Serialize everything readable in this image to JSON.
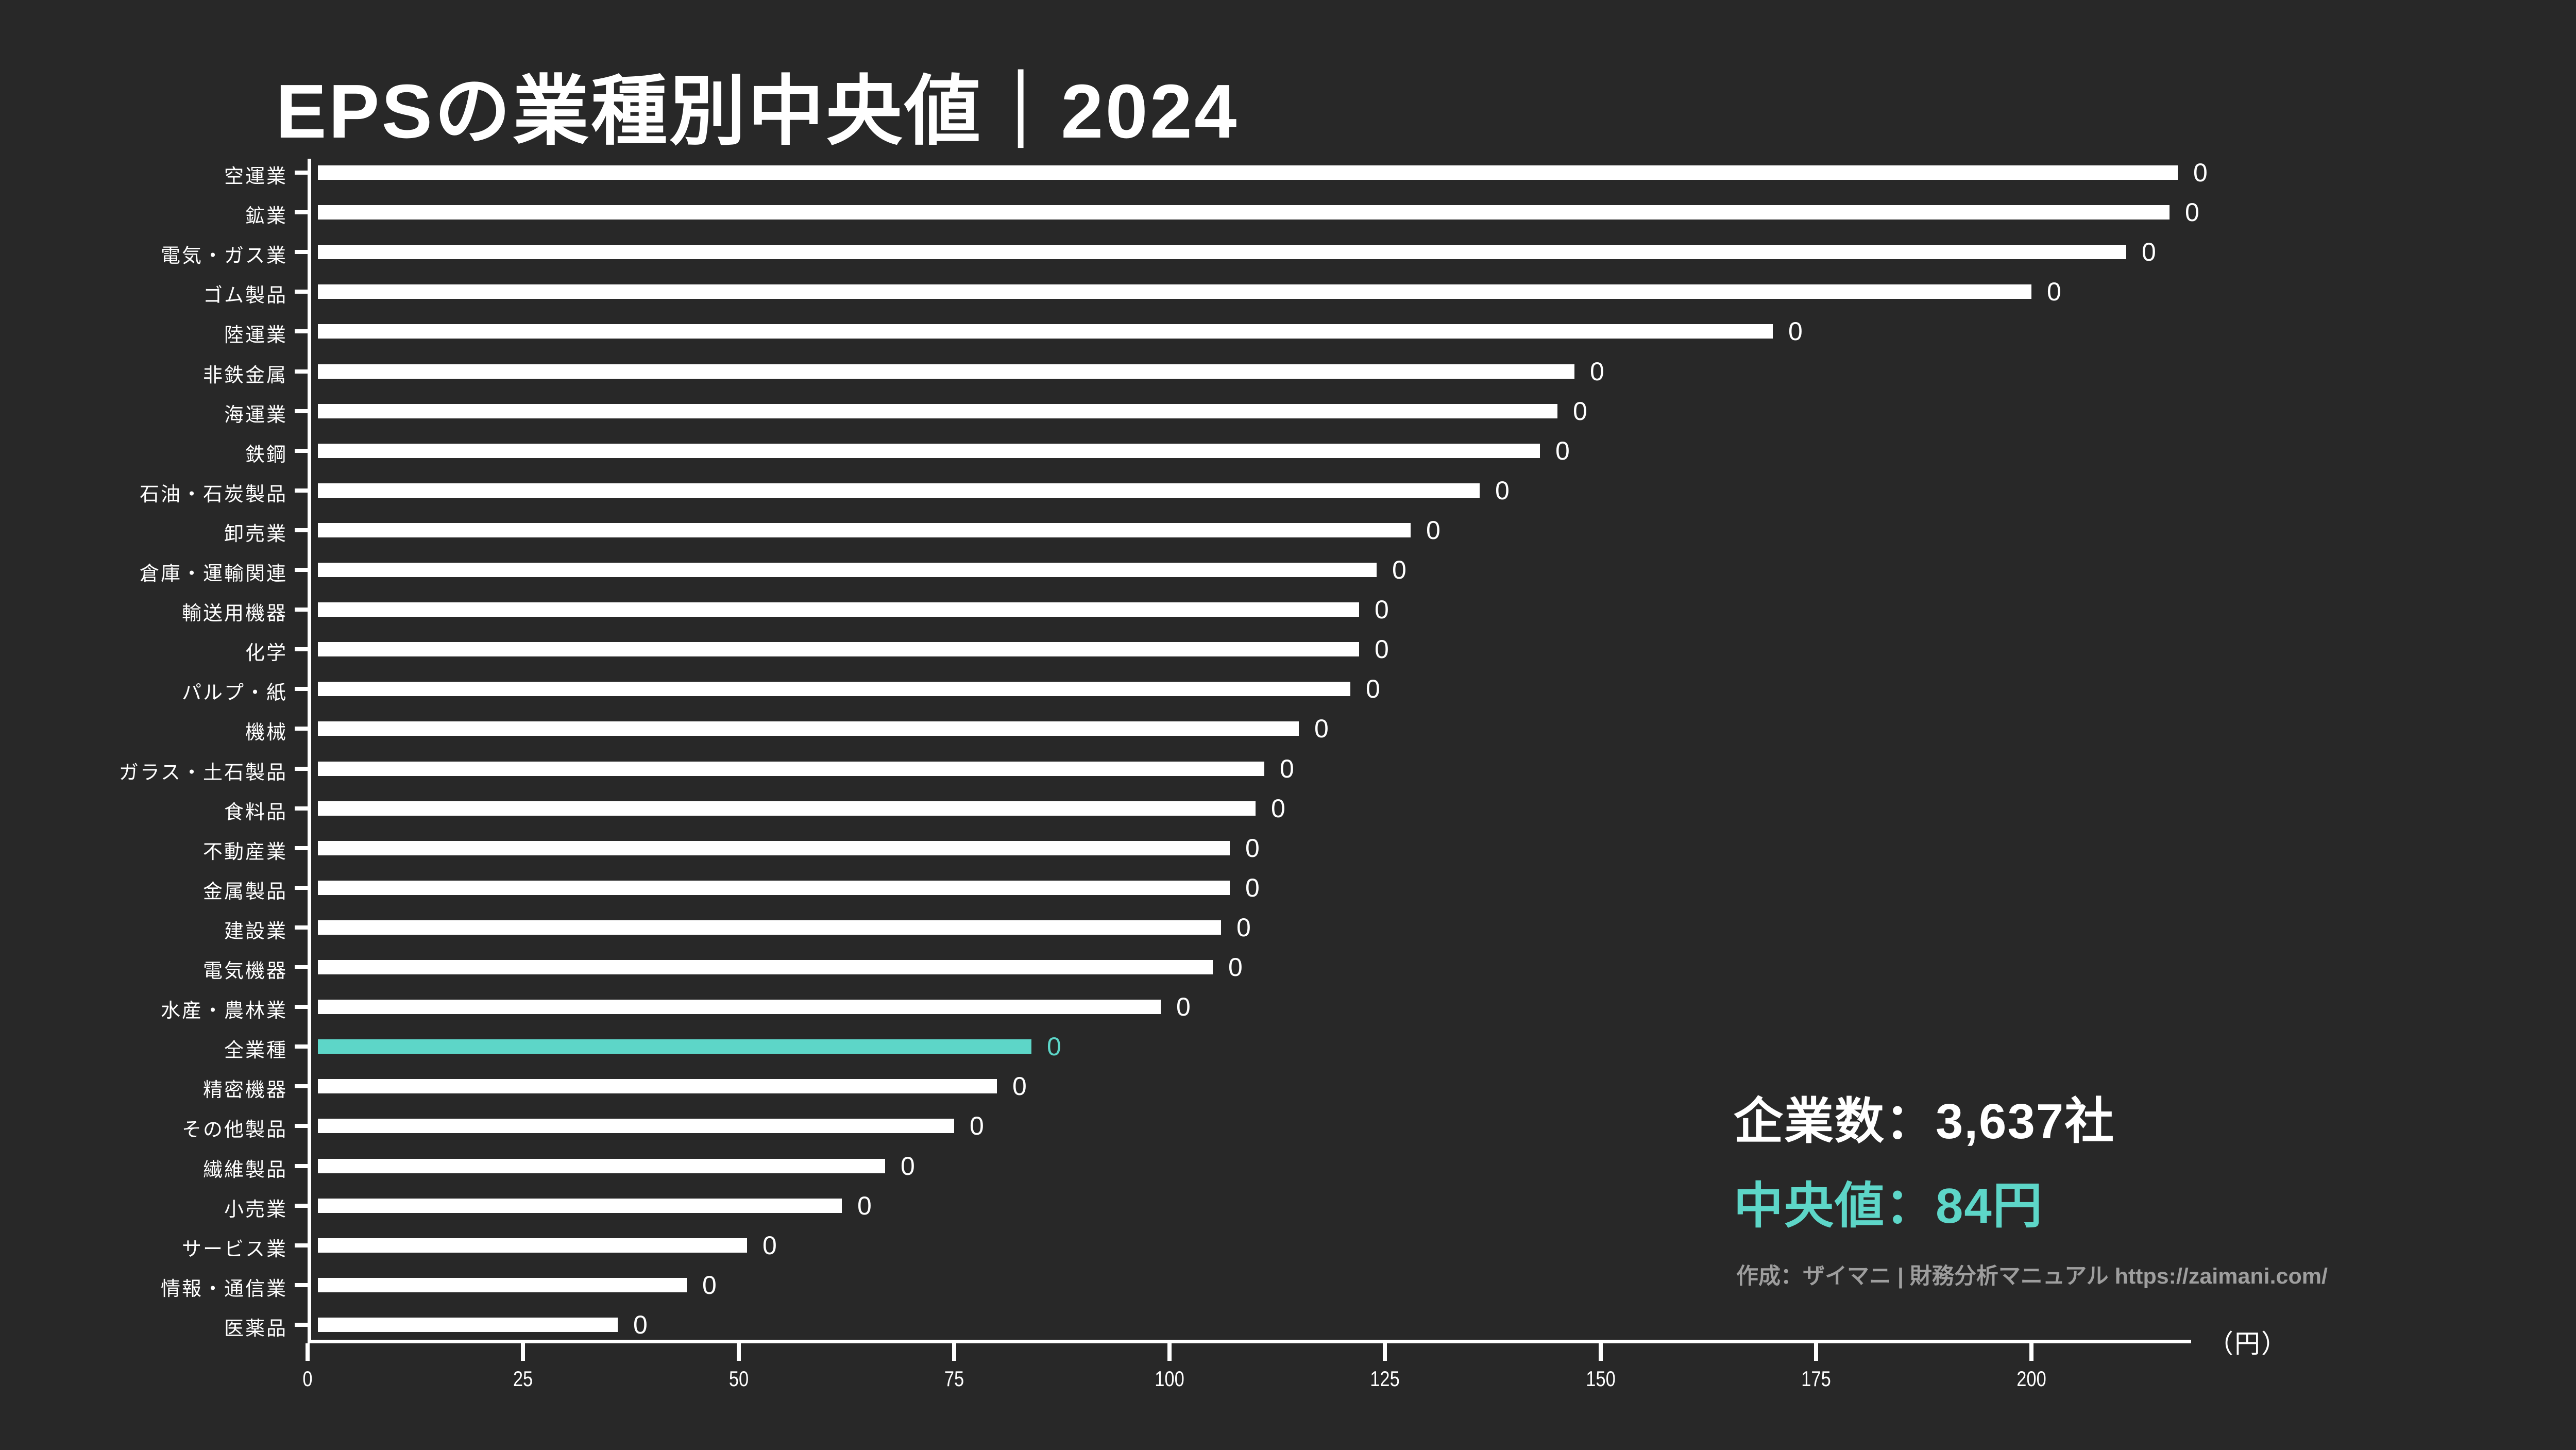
{
  "title": "EPSの業種別中央値｜2024",
  "axis": {
    "unit_label": "（円）",
    "tick_labels": [
      "0",
      "25",
      "50",
      "75",
      "100",
      "125",
      "150",
      "175",
      "200"
    ]
  },
  "summary": {
    "companies_label": "企業数：3,637社",
    "median_label": "中央値：84円",
    "credit": "作成：ザイマニ | 財務分析マニュアル https://zaimani.com/"
  },
  "colors": {
    "background": "#282828",
    "bar": "#ffffff",
    "highlight": "#5dd6c8",
    "text": "#ffffff",
    "credit_text": "#9e9e9e"
  },
  "chart_data": {
    "type": "bar",
    "orientation": "horizontal",
    "title": "EPSの業種別中央値｜2024",
    "xlabel": "（円）",
    "xlim": [
      0,
      218
    ],
    "xticks": [
      0,
      25,
      50,
      75,
      100,
      125,
      150,
      175,
      200
    ],
    "grid": false,
    "legend": false,
    "highlight_category": "全業種",
    "displayed_bar_value_label": "0",
    "categories": [
      "空運業",
      "鉱業",
      "電気・ガス業",
      "ゴム製品",
      "陸運業",
      "非鉄金属",
      "海運業",
      "鉄鋼",
      "石油・石炭製品",
      "卸売業",
      "倉庫・運輸関連",
      "輸送用機器",
      "化学",
      "パルプ・紙",
      "機械",
      "ガラス・土石製品",
      "食料品",
      "不動産業",
      "金属製品",
      "建設業",
      "電気機器",
      "水産・農林業",
      "全業種",
      "精密機器",
      "その他製品",
      "繊維製品",
      "小売業",
      "サービス業",
      "情報・通信業",
      "医薬品"
    ],
    "values": [
      217,
      216,
      211,
      200,
      170,
      147,
      145,
      143,
      136,
      128,
      124,
      122,
      122,
      121,
      115,
      111,
      110,
      107,
      107,
      106,
      105,
      99,
      84,
      80,
      75,
      67,
      62,
      51,
      44,
      36
    ]
  }
}
